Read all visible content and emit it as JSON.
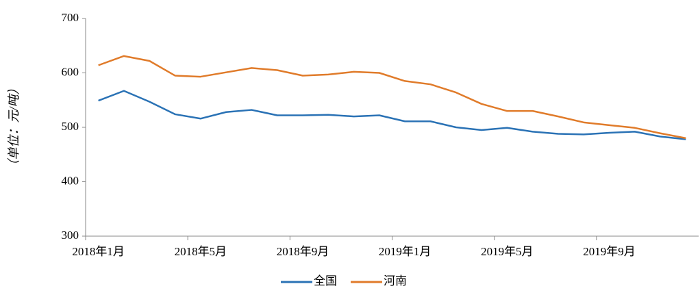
{
  "chart_data": {
    "type": "line",
    "y_label": "（单位：元/吨）",
    "categories": [
      "2018年1月",
      null,
      null,
      null,
      "2018年5月",
      null,
      null,
      null,
      "2018年9月",
      null,
      null,
      null,
      "2019年1月",
      null,
      null,
      null,
      "2019年5月",
      null,
      null,
      null,
      "2019年9月",
      null,
      null,
      null
    ],
    "series": [
      {
        "name": "全国",
        "color": "#2a72b5",
        "values": [
          549,
          567,
          547,
          524,
          516,
          528,
          532,
          522,
          522,
          523,
          520,
          522,
          511,
          511,
          500,
          495,
          499,
          492,
          488,
          487,
          490,
          492,
          483,
          478
        ]
      },
      {
        "name": "河南",
        "color": "#e07b2a",
        "values": [
          614,
          631,
          622,
          595,
          593,
          601,
          609,
          605,
          595,
          597,
          602,
          600,
          585,
          579,
          564,
          543,
          530,
          530,
          520,
          509,
          504,
          499,
          489,
          480
        ]
      }
    ],
    "ylim": [
      300,
      700
    ],
    "yticks": [
      300,
      400,
      500,
      600,
      700
    ],
    "grid": false,
    "legend": "bottom"
  }
}
